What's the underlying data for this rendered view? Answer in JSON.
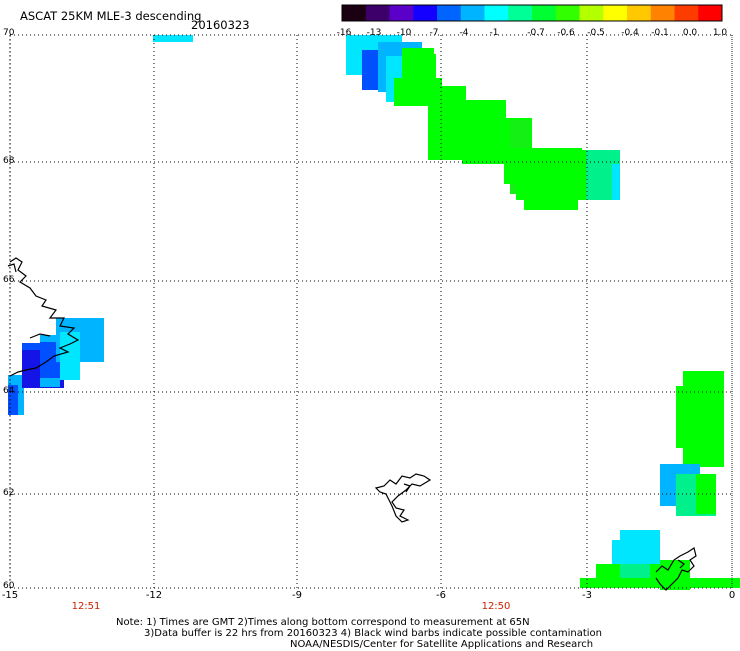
{
  "header": {
    "title": "ASCAT 25KM MLE-3 descending",
    "date": "20160323"
  },
  "colorbar": {
    "tick_labels": [
      "-16",
      "-13",
      "-10",
      "-7",
      "-4",
      "-1",
      "-0.7",
      "-0.6",
      "-0.5",
      "-0.4",
      "-0.1",
      "0.0",
      "1.0"
    ],
    "colors": [
      "#1a0010",
      "#3d006a",
      "#5a00c8",
      "#1400ff",
      "#0064ff",
      "#00b4ff",
      "#00ffff",
      "#00ff96",
      "#00ff32",
      "#32ff00",
      "#b4ff00",
      "#ffff00",
      "#ffc800",
      "#ff8200",
      "#ff3c00",
      "#ff0000"
    ]
  },
  "axes": {
    "x_ticks": [
      "-15",
      "-12",
      "-9",
      "-6",
      "-3",
      "0"
    ],
    "y_ticks": [
      "70",
      "68",
      "66",
      "64",
      "62",
      "60"
    ],
    "lon_range": [
      -15,
      0
    ],
    "lat_range": [
      60,
      70
    ],
    "grid": "dotted"
  },
  "pass_times": [
    "12:51",
    "12:50"
  ],
  "notes": {
    "line1": "Note: 1) Times are GMT 2)Times along bottom correspond to measurement at 65N",
    "line2": "3)Data buffer is 22 hrs from 20160323 4) Black wind barbs indicate possible contamination",
    "line3": "NOAA/NESDIS/Center for Satellite Applications and Research"
  },
  "data_colors": {
    "cyan": "#00e6ff",
    "light_blue": "#00b4ff",
    "blue": "#0050ff",
    "deep_blue": "#1414e6",
    "green": "#00ff00",
    "bright_green": "#14f014",
    "sea_green": "#00f08c",
    "coast": "#000000"
  }
}
